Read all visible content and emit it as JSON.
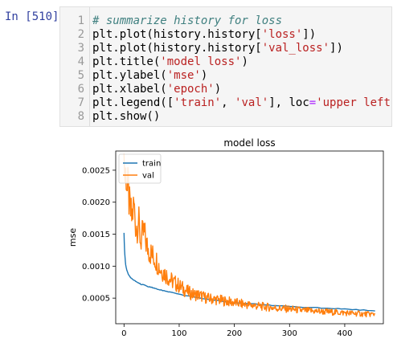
{
  "prompt": "In [510]:",
  "code_lines": [
    {
      "num": "1",
      "parts": [
        {
          "t": "# summarize history for loss",
          "c": "comment"
        }
      ]
    },
    {
      "num": "2",
      "parts": [
        {
          "t": "plt.plot(history.history[",
          "c": ""
        },
        {
          "t": "'loss'",
          "c": "str"
        },
        {
          "t": "])",
          "c": ""
        }
      ]
    },
    {
      "num": "3",
      "parts": [
        {
          "t": "plt.plot(history.history[",
          "c": ""
        },
        {
          "t": "'val_loss'",
          "c": "str"
        },
        {
          "t": "])",
          "c": ""
        }
      ]
    },
    {
      "num": "4",
      "parts": [
        {
          "t": "plt.title(",
          "c": ""
        },
        {
          "t": "'model loss'",
          "c": "str"
        },
        {
          "t": ")",
          "c": ""
        }
      ]
    },
    {
      "num": "5",
      "parts": [
        {
          "t": "plt.ylabel(",
          "c": ""
        },
        {
          "t": "'mse'",
          "c": "str"
        },
        {
          "t": ")",
          "c": ""
        }
      ]
    },
    {
      "num": "6",
      "parts": [
        {
          "t": "plt.xlabel(",
          "c": ""
        },
        {
          "t": "'epoch'",
          "c": "str"
        },
        {
          "t": ")",
          "c": ""
        }
      ]
    },
    {
      "num": "7",
      "parts": [
        {
          "t": "plt.legend([",
          "c": ""
        },
        {
          "t": "'train'",
          "c": "str"
        },
        {
          "t": ", ",
          "c": ""
        },
        {
          "t": "'val'",
          "c": "str"
        },
        {
          "t": "], loc",
          "c": ""
        },
        {
          "t": "=",
          "c": "op"
        },
        {
          "t": "'upper left'",
          "c": "str"
        },
        {
          "t": ")",
          "c": ""
        }
      ]
    },
    {
      "num": "8",
      "parts": [
        {
          "t": "plt.show()",
          "c": ""
        }
      ]
    }
  ],
  "chart_data": {
    "type": "line",
    "title": "model loss",
    "xlabel": "",
    "ylabel": "mse",
    "xlim": [
      -15,
      470
    ],
    "ylim": [
      0.0001,
      0.0028
    ],
    "x_ticks": [
      0,
      100,
      200,
      300,
      400
    ],
    "y_ticks": [
      0.0005,
      0.001,
      0.0015,
      0.002,
      0.0025
    ],
    "y_tick_labels": [
      "0.0005",
      "0.0010",
      "0.0015",
      "0.0020",
      "0.0025"
    ],
    "legend": {
      "position": "upper left",
      "entries": [
        "train",
        "val"
      ]
    },
    "grid": false,
    "series": [
      {
        "name": "train",
        "color": "#1f77b4",
        "x": [
          0,
          1,
          2,
          3,
          5,
          8,
          12,
          20,
          30,
          45,
          60,
          80,
          100,
          130,
          160,
          200,
          250,
          300,
          350,
          400,
          455
        ],
        "values": [
          0.00152,
          0.00125,
          0.00112,
          0.00102,
          0.00094,
          0.00087,
          0.00082,
          0.00077,
          0.00072,
          0.00068,
          0.00064,
          0.0006,
          0.00056,
          0.00051,
          0.00047,
          0.00043,
          0.0004,
          0.00037,
          0.00035,
          0.00033,
          0.0003
        ]
      },
      {
        "name": "val",
        "color": "#ff7f0e",
        "x": [
          0,
          2,
          4,
          6,
          8,
          10,
          14,
          18,
          22,
          26,
          30,
          36,
          42,
          50,
          58,
          66,
          75,
          85,
          95,
          105,
          115,
          125,
          135,
          150,
          165,
          180,
          200,
          220,
          240,
          260,
          280,
          300,
          320,
          340,
          360,
          380,
          400,
          420,
          440,
          455
        ],
        "values": [
          0.0027,
          0.00235,
          0.0025,
          0.00215,
          0.0022,
          0.0019,
          0.00175,
          0.00195,
          0.0016,
          0.00172,
          0.0014,
          0.00152,
          0.0013,
          0.00118,
          0.0011,
          0.00095,
          0.00088,
          0.00078,
          0.00072,
          0.00066,
          0.0006,
          0.00056,
          0.00055,
          0.0005,
          0.00048,
          0.00046,
          0.00043,
          0.0004,
          0.00038,
          0.00036,
          0.00034,
          0.00033,
          0.00031,
          0.0003,
          0.00029,
          0.00028,
          0.00027,
          0.00026,
          0.00025,
          0.00025
        ]
      }
    ]
  }
}
